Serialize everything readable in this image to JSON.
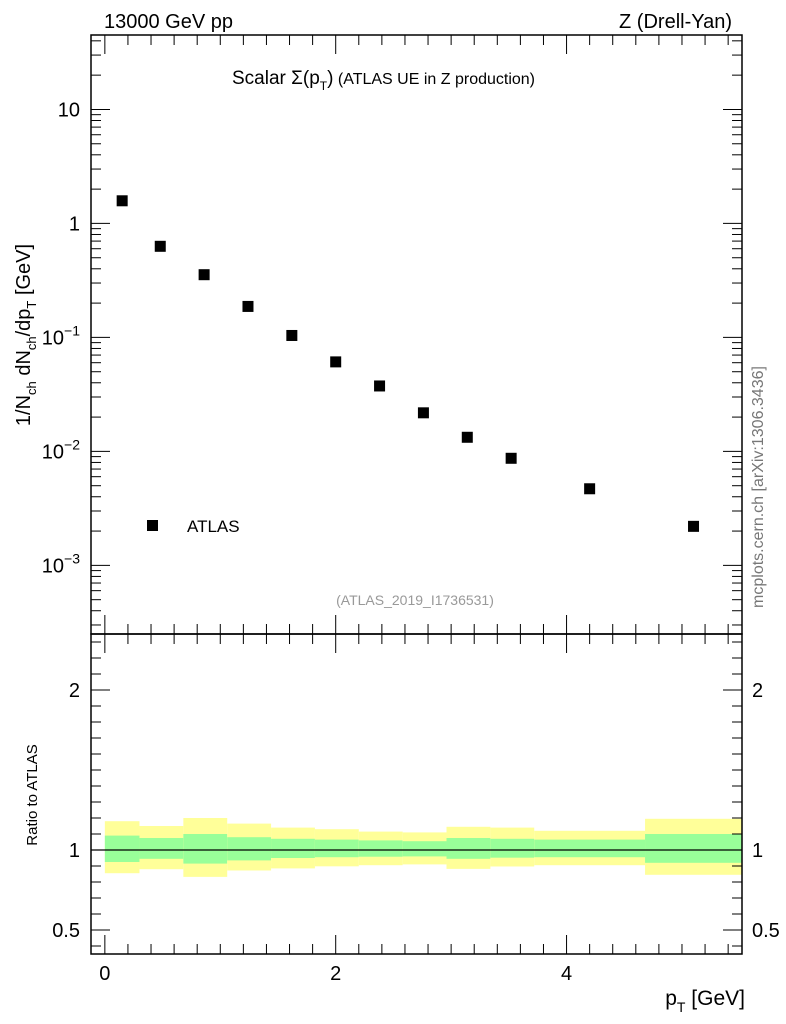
{
  "header": {
    "left": "13000 GeV pp",
    "right": "Z (Drell-Yan)"
  },
  "watermark": "mcplots.cern.ch [arXiv:1306.3436]",
  "reference_tag": "(ATLAS_2019_I1736531)",
  "chart_data": [
    {
      "type": "scatter",
      "title": "Scalar Σ(pT) (ATLAS UE in Z production)",
      "xlabel": "pT [GeV]",
      "ylabel": "1/Nch dNch/dpT [GeV]",
      "yscale": "log",
      "xlim": [
        -0.12,
        5.52
      ],
      "ylim": [
        0.00025,
        45
      ],
      "y_tick_labels": [
        "10^-3",
        "10^-2",
        "10^-1",
        "1",
        "10"
      ],
      "legend": {
        "position": "lower-left",
        "entries": [
          "ATLAS"
        ]
      },
      "series": [
        {
          "name": "ATLAS",
          "marker": "square",
          "color": "#000000",
          "x": [
            0.15,
            0.48,
            0.86,
            1.24,
            1.62,
            2.0,
            2.38,
            2.76,
            3.14,
            3.52,
            4.2,
            5.1
          ],
          "y": [
            1.58,
            0.63,
            0.355,
            0.187,
            0.104,
            0.061,
            0.0375,
            0.0218,
            0.0133,
            0.0087,
            0.0047,
            0.0022
          ]
        }
      ]
    },
    {
      "type": "area",
      "ylabel": "Ratio to ATLAS",
      "xlim": [
        -0.12,
        5.52
      ],
      "ylim": [
        0.35,
        2.35
      ],
      "x_tick_labels": [
        "0",
        "2",
        "4"
      ],
      "y_tick_labels": [
        "0.5",
        "1",
        "2"
      ],
      "reference_line": 1,
      "bin_edges": [
        0.0,
        0.3,
        0.68,
        1.06,
        1.44,
        1.82,
        2.2,
        2.58,
        2.96,
        3.34,
        3.72,
        4.68,
        5.52
      ],
      "band_outer": {
        "color": "#ffff99",
        "low": [
          0.855,
          0.88,
          0.832,
          0.872,
          0.885,
          0.898,
          0.905,
          0.91,
          0.882,
          0.897,
          0.905,
          0.845
        ],
        "high": [
          1.18,
          1.15,
          1.2,
          1.165,
          1.14,
          1.13,
          1.115,
          1.11,
          1.145,
          1.14,
          1.12,
          1.195
        ]
      },
      "band_inner": {
        "color": "#99ff99",
        "low": [
          0.925,
          0.945,
          0.915,
          0.935,
          0.95,
          0.955,
          0.958,
          0.96,
          0.945,
          0.952,
          0.955,
          0.92
        ],
        "high": [
          1.09,
          1.075,
          1.1,
          1.08,
          1.07,
          1.065,
          1.06,
          1.055,
          1.075,
          1.07,
          1.065,
          1.1
        ]
      }
    }
  ]
}
